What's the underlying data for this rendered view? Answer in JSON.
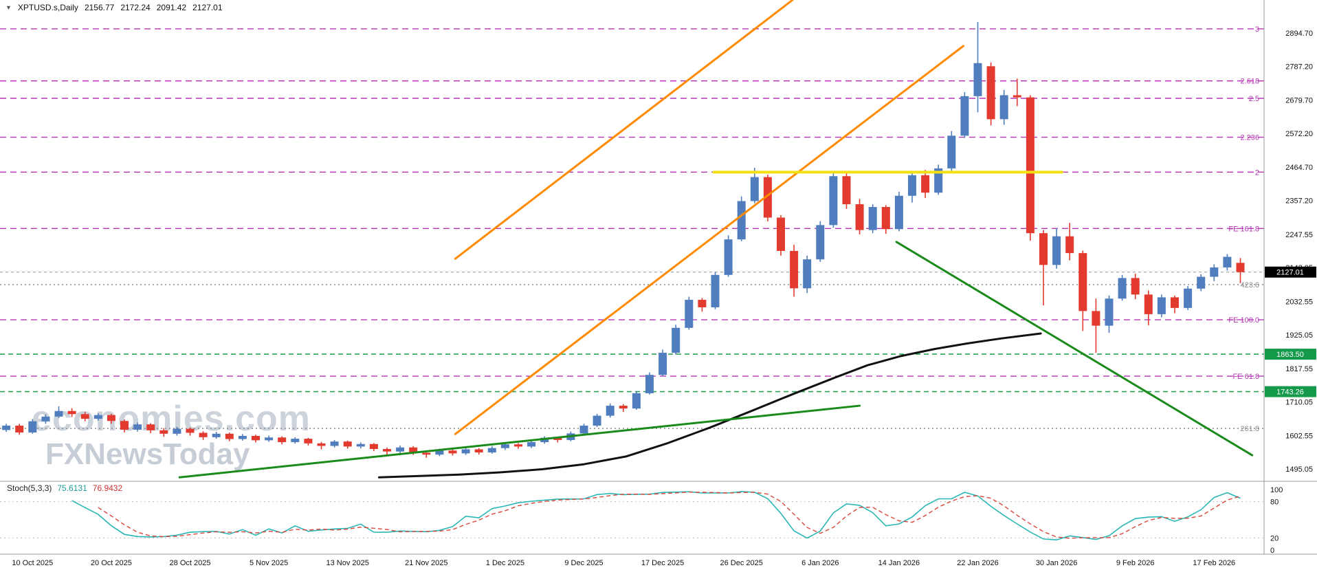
{
  "symbol_bar": {
    "icon": "▼",
    "title": "XPTUSD.s,Daily",
    "ohlc": [
      "2156.77",
      "2172.24",
      "2091.42",
      "2127.01"
    ]
  },
  "watermark": {
    "line1": "economies.com",
    "line2": "FXNewsToday"
  },
  "stochastic": {
    "label": "Stoch(5,3,3)",
    "k_value": "75.6131",
    "d_value": "76.9432",
    "k_period": 5,
    "d_period": 3,
    "slowing": 3,
    "scale_labels": [
      "100",
      "80",
      "20",
      "0"
    ],
    "upper_level": 80,
    "lower_level": 20,
    "k_color": "#29b6b6",
    "d_color": "#d9453a"
  },
  "chart_data": {
    "type": "candlestick",
    "symbol": "XPTUSD.s",
    "timeframe": "Daily",
    "legend_position": "none",
    "grid": "off",
    "colors": {
      "bull": "#4f7dbe",
      "bear": "#e23a2e",
      "axis_text": "#111111",
      "separator": "#999999",
      "current_line": "#909090"
    },
    "price_axis": {
      "values": [
        2894.7,
        2787.2,
        2679.7,
        2572.2,
        2464.7,
        2357.2,
        2247.55,
        2142.05,
        2032.55,
        1925.05,
        1817.55,
        1710.05,
        1602.55,
        1495.05
      ],
      "current": {
        "value": 2127.01,
        "label": "2127.01",
        "bg": "#000000",
        "fg": "#ffffff"
      },
      "tags": [
        {
          "value": 1863.5,
          "label": "1863.50",
          "bg": "#15994a",
          "fg": "#ffffff"
        },
        {
          "value": 1743.26,
          "label": "1743.26",
          "bg": "#15994a",
          "fg": "#ffffff"
        }
      ]
    },
    "x_axis": {
      "ticks": [
        {
          "i": 3,
          "label": "10 Oct 2025"
        },
        {
          "i": 9,
          "label": "20 Oct 2025"
        },
        {
          "i": 15,
          "label": "28 Oct 2025"
        },
        {
          "i": 21,
          "label": "5 Nov 2025"
        },
        {
          "i": 27,
          "label": "13 Nov 2025"
        },
        {
          "i": 33,
          "label": "21 Nov 2025"
        },
        {
          "i": 39,
          "label": "1 Dec 2025"
        },
        {
          "i": 45,
          "label": "9 Dec 2025"
        },
        {
          "i": 51,
          "label": "17 Dec 2025"
        },
        {
          "i": 57,
          "label": "26 Dec 2025"
        },
        {
          "i": 63,
          "label": "6 Jan 2026"
        },
        {
          "i": 69,
          "label": "14 Jan 2026"
        },
        {
          "i": 75,
          "label": "22 Jan 2026"
        },
        {
          "i": 81,
          "label": "30 Jan 2026"
        },
        {
          "i": 87,
          "label": "9 Feb 2026"
        },
        {
          "i": 93,
          "label": "17 Feb 2026"
        }
      ]
    },
    "fib_levels": [
      {
        "label": "3",
        "price": 2908,
        "color": "#b535b5",
        "dash": "9 6"
      },
      {
        "label": "2.618",
        "price": 2741,
        "color": "#b535b5",
        "dash": "9 6"
      },
      {
        "label": "2.5",
        "price": 2685,
        "color": "#b535b5",
        "dash": "9 6"
      },
      {
        "label": "2.236",
        "price": 2560,
        "color": "#b535b5",
        "dash": "9 6"
      },
      {
        "label": "2",
        "price": 2448,
        "color": "#b535b5",
        "dash": "9 6"
      },
      {
        "label": "FE 161.8",
        "price": 2267,
        "color": "#b535b5",
        "dash": "9 6"
      },
      {
        "label": "423.6",
        "price": 2087,
        "color": "#8a8a8a",
        "dash": "2 4"
      },
      {
        "label": "FE 100.0",
        "price": 1974,
        "color": "#b535b5",
        "dash": "9 6"
      },
      {
        "label": "FE 61.8",
        "price": 1793,
        "color": "#b535b5",
        "dash": "9 6"
      },
      {
        "label": "261.8",
        "price": 1625,
        "color": "#8a8a8a",
        "dash": "2 4"
      }
    ],
    "green_levels": [
      {
        "price": 1863.5,
        "color": "#2aa054",
        "dash": "7 5"
      },
      {
        "price": 1743.26,
        "color": "#2aa054",
        "dash": "7 5"
      }
    ],
    "trendlines": [
      {
        "name": "channel-upper-trendline",
        "color": "#ff8a00",
        "width": 3,
        "i1": 35.2,
        "p1": 2170,
        "i2": 60.9,
        "p2": 3001
      },
      {
        "name": "channel-lower-trendline",
        "color": "#ff8a00",
        "width": 3,
        "i1": 35.2,
        "p1": 1607,
        "i2": 73.9,
        "p2": 2853
      },
      {
        "name": "yellow-resistance-line",
        "color": "#f2e011",
        "width": 4,
        "i1": 54.9,
        "p1": 2448,
        "i2": 81.4,
        "p2": 2448
      },
      {
        "name": "ascending-support-trendline",
        "color": "#1a8a1a",
        "width": 3,
        "i1": 14.2,
        "p1": 1468,
        "i2": 66.0,
        "p2": 1698
      },
      {
        "name": "descending-support-trendline",
        "color": "#1a8a1a",
        "width": 3,
        "i1": 68.8,
        "p1": 2224,
        "i2": 95.9,
        "p2": 1539
      }
    ],
    "ma_line": {
      "color": "#111111",
      "width": 3,
      "points": [
        [
          29.4,
          1468
        ],
        [
          32.3,
          1472
        ],
        [
          35.5,
          1477
        ],
        [
          38.6,
          1484
        ],
        [
          41.8,
          1494
        ],
        [
          45.0,
          1510
        ],
        [
          48.2,
          1535
        ],
        [
          51.4,
          1578
        ],
        [
          54.6,
          1628
        ],
        [
          57.7,
          1680
        ],
        [
          60.9,
          1735
        ],
        [
          64.1,
          1788
        ],
        [
          66.6,
          1828
        ],
        [
          69.2,
          1858
        ],
        [
          71.7,
          1880
        ],
        [
          74.2,
          1898
        ],
        [
          76.8,
          1914
        ],
        [
          79.8,
          1930
        ]
      ]
    },
    "candles": [
      [
        1638,
        1648,
        1612,
        1620
      ],
      [
        1620,
        1640,
        1614,
        1634
      ],
      [
        1634,
        1640,
        1605,
        1612
      ],
      [
        1612,
        1655,
        1608,
        1648
      ],
      [
        1648,
        1670,
        1640,
        1663
      ],
      [
        1663,
        1696,
        1658,
        1681
      ],
      [
        1681,
        1690,
        1662,
        1671
      ],
      [
        1671,
        1678,
        1648,
        1656
      ],
      [
        1656,
        1674,
        1650,
        1668
      ],
      [
        1668,
        1672,
        1640,
        1649
      ],
      [
        1649,
        1654,
        1612,
        1621
      ],
      [
        1621,
        1644,
        1615,
        1638
      ],
      [
        1638,
        1642,
        1610,
        1619
      ],
      [
        1619,
        1626,
        1598,
        1608
      ],
      [
        1608,
        1630,
        1602,
        1624
      ],
      [
        1624,
        1628,
        1602,
        1611
      ],
      [
        1611,
        1616,
        1588,
        1597
      ],
      [
        1597,
        1614,
        1592,
        1608
      ],
      [
        1608,
        1612,
        1584,
        1591
      ],
      [
        1591,
        1607,
        1586,
        1601
      ],
      [
        1601,
        1605,
        1580,
        1587
      ],
      [
        1587,
        1602,
        1582,
        1596
      ],
      [
        1596,
        1600,
        1574,
        1581
      ],
      [
        1581,
        1597,
        1576,
        1592
      ],
      [
        1592,
        1595,
        1570,
        1577
      ],
      [
        1577,
        1582,
        1558,
        1569
      ],
      [
        1569,
        1588,
        1564,
        1583
      ],
      [
        1583,
        1586,
        1560,
        1567
      ],
      [
        1567,
        1580,
        1561,
        1575
      ],
      [
        1575,
        1578,
        1552,
        1559
      ],
      [
        1559,
        1564,
        1540,
        1551
      ],
      [
        1551,
        1570,
        1546,
        1564
      ],
      [
        1564,
        1568,
        1540,
        1547
      ],
      [
        1547,
        1552,
        1531,
        1541
      ],
      [
        1541,
        1560,
        1536,
        1554
      ],
      [
        1554,
        1558,
        1538,
        1545
      ],
      [
        1545,
        1564,
        1540,
        1558
      ],
      [
        1558,
        1562,
        1541,
        1548
      ],
      [
        1548,
        1568,
        1544,
        1562
      ],
      [
        1562,
        1580,
        1556,
        1574
      ],
      [
        1574,
        1578,
        1560,
        1567
      ],
      [
        1567,
        1586,
        1562,
        1581
      ],
      [
        1581,
        1600,
        1576,
        1595
      ],
      [
        1595,
        1599,
        1580,
        1588
      ],
      [
        1588,
        1615,
        1584,
        1609
      ],
      [
        1609,
        1640,
        1605,
        1634
      ],
      [
        1634,
        1672,
        1630,
        1666
      ],
      [
        1666,
        1705,
        1660,
        1698
      ],
      [
        1698,
        1703,
        1678,
        1689
      ],
      [
        1689,
        1745,
        1685,
        1738
      ],
      [
        1738,
        1805,
        1734,
        1797
      ],
      [
        1797,
        1878,
        1792,
        1868
      ],
      [
        1868,
        1958,
        1862,
        1948
      ],
      [
        1948,
        2048,
        1942,
        2038
      ],
      [
        2038,
        2044,
        2000,
        2014
      ],
      [
        2014,
        2128,
        2008,
        2118
      ],
      [
        2118,
        2245,
        2112,
        2232
      ],
      [
        2232,
        2370,
        2226,
        2355
      ],
      [
        2355,
        2462,
        2348,
        2432
      ],
      [
        2432,
        2440,
        2290,
        2302
      ],
      [
        2302,
        2310,
        2180,
        2195
      ],
      [
        2195,
        2215,
        2048,
        2075
      ],
      [
        2075,
        2180,
        2060,
        2168
      ],
      [
        2168,
        2290,
        2160,
        2278
      ],
      [
        2278,
        2448,
        2270,
        2435
      ],
      [
        2435,
        2452,
        2330,
        2345
      ],
      [
        2345,
        2362,
        2248,
        2262
      ],
      [
        2262,
        2345,
        2252,
        2336
      ],
      [
        2336,
        2342,
        2250,
        2265
      ],
      [
        2265,
        2385,
        2258,
        2372
      ],
      [
        2372,
        2448,
        2350,
        2438
      ],
      [
        2438,
        2455,
        2365,
        2382
      ],
      [
        2382,
        2472,
        2375,
        2460
      ],
      [
        2460,
        2580,
        2452,
        2565
      ],
      [
        2565,
        2705,
        2558,
        2692
      ],
      [
        2692,
        2930,
        2640,
        2798
      ],
      [
        2788,
        2800,
        2598,
        2618
      ],
      [
        2618,
        2712,
        2600,
        2695
      ],
      [
        2695,
        2748,
        2660,
        2688
      ],
      [
        2688,
        2695,
        2228,
        2252
      ],
      [
        2252,
        2262,
        2020,
        2150
      ],
      [
        2150,
        2268,
        2138,
        2242
      ],
      [
        2242,
        2285,
        2165,
        2188
      ],
      [
        2188,
        2196,
        1938,
        2002
      ],
      [
        2002,
        2042,
        1868,
        1955
      ],
      [
        1955,
        2052,
        1932,
        2042
      ],
      [
        2042,
        2118,
        2035,
        2108
      ],
      [
        2108,
        2122,
        2040,
        2055
      ],
      [
        2055,
        2068,
        1956,
        1992
      ],
      [
        1992,
        2055,
        1982,
        2046
      ],
      [
        2046,
        2052,
        1995,
        2012
      ],
      [
        2012,
        2082,
        2005,
        2074
      ],
      [
        2074,
        2120,
        2066,
        2112
      ],
      [
        2112,
        2152,
        2098,
        2142
      ],
      [
        2142,
        2185,
        2132,
        2176
      ],
      [
        2156.77,
        2172.24,
        2091.42,
        2127.01
      ]
    ]
  }
}
